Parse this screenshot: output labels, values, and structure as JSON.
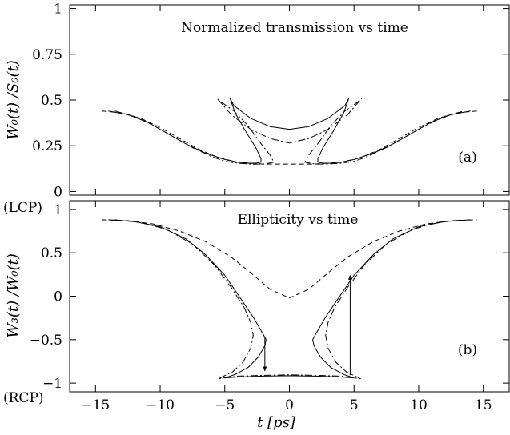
{
  "chart_data": [
    {
      "type": "line",
      "title": "Normalized transmission vs time",
      "panel_label": "(a)",
      "ylabel": "W₀(t) /S₀(t)",
      "xlim": [
        -17,
        17
      ],
      "ylim": [
        -0.02,
        1.02
      ],
      "yticks": [
        0,
        0.25,
        0.5,
        0.75,
        1
      ],
      "ytick_labels": [
        "0",
        "0.25",
        "0.5",
        "0.75",
        "1"
      ],
      "series": [
        {
          "style": "solid",
          "x": [
            -14,
            -12.5,
            -11,
            -9.5,
            -8,
            -6.5,
            -5,
            -4,
            -3.2,
            -2.6,
            -2.2,
            -2.2,
            -2.6,
            -3.4,
            -4.2,
            -4.6,
            -4.3,
            -3,
            -1.5,
            0,
            1.5,
            3,
            4.3,
            4.6,
            4.2,
            3.4,
            2.6,
            2.2,
            2.2,
            2.6,
            3.2,
            4,
            5,
            6.5,
            8,
            9.5,
            11,
            12.5,
            14
          ],
          "y": [
            0.44,
            0.42,
            0.38,
            0.32,
            0.26,
            0.21,
            0.175,
            0.16,
            0.155,
            0.155,
            0.16,
            0.18,
            0.24,
            0.33,
            0.43,
            0.51,
            0.47,
            0.4,
            0.355,
            0.34,
            0.355,
            0.4,
            0.47,
            0.51,
            0.43,
            0.33,
            0.24,
            0.18,
            0.16,
            0.155,
            0.155,
            0.16,
            0.175,
            0.21,
            0.26,
            0.32,
            0.38,
            0.42,
            0.44
          ]
        },
        {
          "style": "dashed",
          "x": [
            -14.5,
            -13,
            -11.5,
            -10,
            -8.5,
            -7,
            -5.5,
            -4,
            -2,
            0,
            2,
            4,
            5.5,
            7,
            8.5,
            10,
            11.5,
            13,
            14.5
          ],
          "y": [
            0.44,
            0.43,
            0.4,
            0.35,
            0.29,
            0.23,
            0.185,
            0.16,
            0.15,
            0.15,
            0.15,
            0.16,
            0.185,
            0.23,
            0.29,
            0.35,
            0.4,
            0.43,
            0.44
          ]
        },
        {
          "style": "dashdot",
          "x": [
            -13.5,
            -12,
            -10.5,
            -9,
            -7.5,
            -6,
            -5,
            -4,
            -3,
            -2,
            -1.2,
            -1.5,
            -2.3,
            -3.2,
            -4.3,
            -5.5,
            -5.6,
            -4.5,
            -3,
            -1.5,
            0,
            1.5,
            3,
            4.5,
            5.6,
            5.5,
            4.3,
            3.2,
            2.3,
            1.5,
            1.2,
            2,
            3,
            4,
            5,
            6,
            7.5,
            9,
            10.5,
            12,
            13.5
          ],
          "y": [
            0.44,
            0.41,
            0.36,
            0.3,
            0.24,
            0.19,
            0.165,
            0.155,
            0.15,
            0.15,
            0.16,
            0.2,
            0.27,
            0.36,
            0.44,
            0.5,
            0.51,
            0.42,
            0.34,
            0.29,
            0.265,
            0.29,
            0.34,
            0.42,
            0.51,
            0.5,
            0.44,
            0.36,
            0.27,
            0.2,
            0.16,
            0.15,
            0.15,
            0.155,
            0.165,
            0.19,
            0.24,
            0.3,
            0.36,
            0.41,
            0.44
          ]
        }
      ]
    },
    {
      "type": "line",
      "title": "Ellipticity vs time",
      "panel_label": "(b)",
      "ylabel": "W₃(t) /W₀(t)",
      "xlabel": "t [ps]",
      "xlim": [
        -17,
        17
      ],
      "xticks": [
        -15,
        -10,
        -5,
        0,
        5,
        10,
        15
      ],
      "xtick_labels": [
        "−15",
        "−10",
        "−5",
        "0",
        "5",
        "10",
        "15"
      ],
      "ylim": [
        -1.1,
        1.1
      ],
      "yticks": [
        -1,
        -0.5,
        0,
        0.5,
        1
      ],
      "ytick_labels": [
        "−1",
        "−0.5",
        "0",
        "0.5",
        "1"
      ],
      "side_labels": {
        "top": "(LCP)",
        "bottom": "(RCP)"
      },
      "series": [
        {
          "style": "solid",
          "x": [
            -14,
            -12,
            -10,
            -8,
            -6.5,
            -5,
            -3.8,
            -2.8,
            -2.1,
            -1.8,
            -1.9,
            -2.4,
            -3.2,
            -4.2,
            -5,
            -4,
            -2,
            0,
            2,
            4,
            5,
            4.2,
            3.2,
            2.4,
            1.9,
            1.8,
            2.1,
            2.8,
            3.8,
            5,
            6.5,
            8,
            10,
            12,
            14
          ],
          "y": [
            0.88,
            0.86,
            0.8,
            0.66,
            0.48,
            0.24,
            -0.02,
            -0.24,
            -0.42,
            -0.5,
            -0.57,
            -0.7,
            -0.82,
            -0.9,
            -0.94,
            -0.93,
            -0.92,
            -0.915,
            -0.92,
            -0.93,
            -0.94,
            -0.9,
            -0.82,
            -0.7,
            -0.57,
            -0.5,
            -0.42,
            -0.24,
            -0.02,
            0.24,
            0.48,
            0.66,
            0.8,
            0.86,
            0.88
          ]
        },
        {
          "style": "dashed",
          "x": [
            -14.5,
            -12.5,
            -10.5,
            -8.5,
            -6.5,
            -4.5,
            -3,
            -1.5,
            0,
            1.5,
            3,
            4.5,
            6.5,
            8.5,
            10.5,
            12.5,
            14.5
          ],
          "y": [
            0.88,
            0.87,
            0.83,
            0.75,
            0.63,
            0.45,
            0.27,
            0.08,
            -0.02,
            0.08,
            0.27,
            0.45,
            0.63,
            0.75,
            0.83,
            0.87,
            0.88
          ]
        },
        {
          "style": "dashdot",
          "x": [
            -13.5,
            -11.5,
            -9.5,
            -7.5,
            -5.8,
            -4.5,
            -3.5,
            -3,
            -2.8,
            -3,
            -3.6,
            -4.4,
            -5.5,
            -4,
            -2,
            0,
            2,
            4,
            5.5,
            4.4,
            3.6,
            3,
            2.8,
            3,
            3.5,
            4.5,
            5.8,
            7.5,
            9.5,
            11.5,
            13.5
          ],
          "y": [
            0.88,
            0.85,
            0.77,
            0.6,
            0.36,
            0.1,
            -0.13,
            -0.3,
            -0.45,
            -0.6,
            -0.76,
            -0.87,
            -0.95,
            -0.92,
            -0.91,
            -0.905,
            -0.91,
            -0.92,
            -0.95,
            -0.87,
            -0.76,
            -0.6,
            -0.45,
            -0.3,
            -0.13,
            0.1,
            0.36,
            0.6,
            0.77,
            0.85,
            0.88
          ]
        }
      ],
      "arrows": [
        {
          "x": -1.9,
          "y_from": -0.47,
          "y_to": -0.86
        },
        {
          "x": 4.7,
          "y_from": -0.91,
          "y_to": 0.24
        }
      ]
    }
  ]
}
